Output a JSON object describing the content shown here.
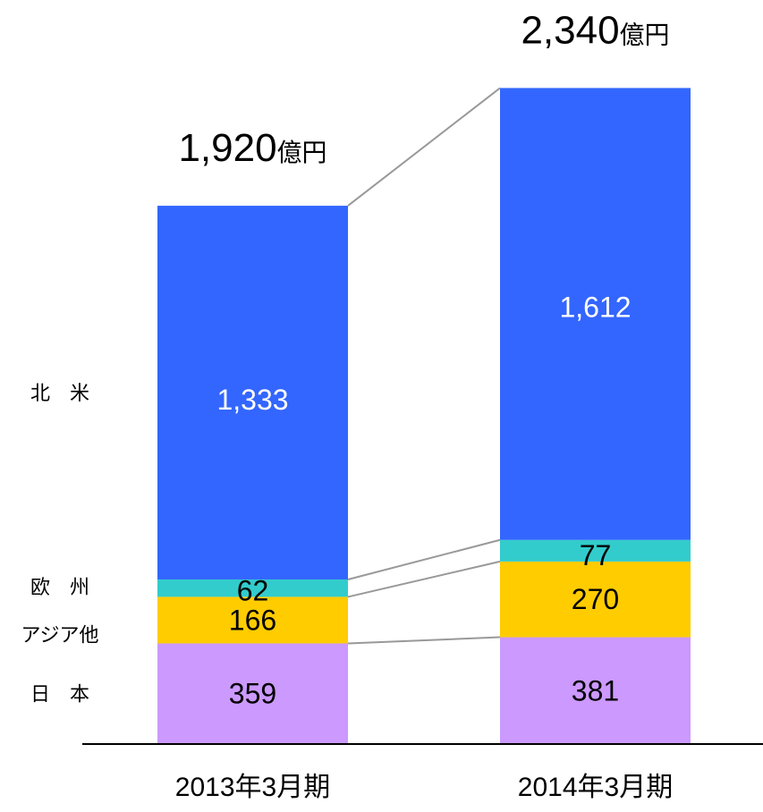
{
  "chart_data": {
    "type": "bar",
    "stacked": true,
    "categories": [
      "2013年3月期",
      "2014年3月期"
    ],
    "totals": [
      {
        "value": "1,920",
        "unit": "億円"
      },
      {
        "value": "2,340",
        "unit": "億円"
      }
    ],
    "series": [
      {
        "name": "日　本",
        "color": "#cc99ff",
        "label_color": "#000000",
        "values": [
          359,
          381
        ],
        "labels": [
          "359",
          "381"
        ]
      },
      {
        "name": "アジア他",
        "color": "#ffcc00",
        "label_color": "#000000",
        "values": [
          166,
          270
        ],
        "labels": [
          "166",
          "270"
        ]
      },
      {
        "name": "欧　州",
        "color": "#33cccc",
        "label_color": "#000000",
        "values": [
          62,
          77
        ],
        "labels": [
          "62",
          "77"
        ]
      },
      {
        "name": "北　米",
        "color": "#3366ff",
        "label_color": "#ffffff",
        "values": [
          1333,
          1612
        ],
        "labels": [
          "1,333",
          "1,612"
        ]
      }
    ],
    "connector_color": "#999999",
    "axis_color": "#000000"
  }
}
